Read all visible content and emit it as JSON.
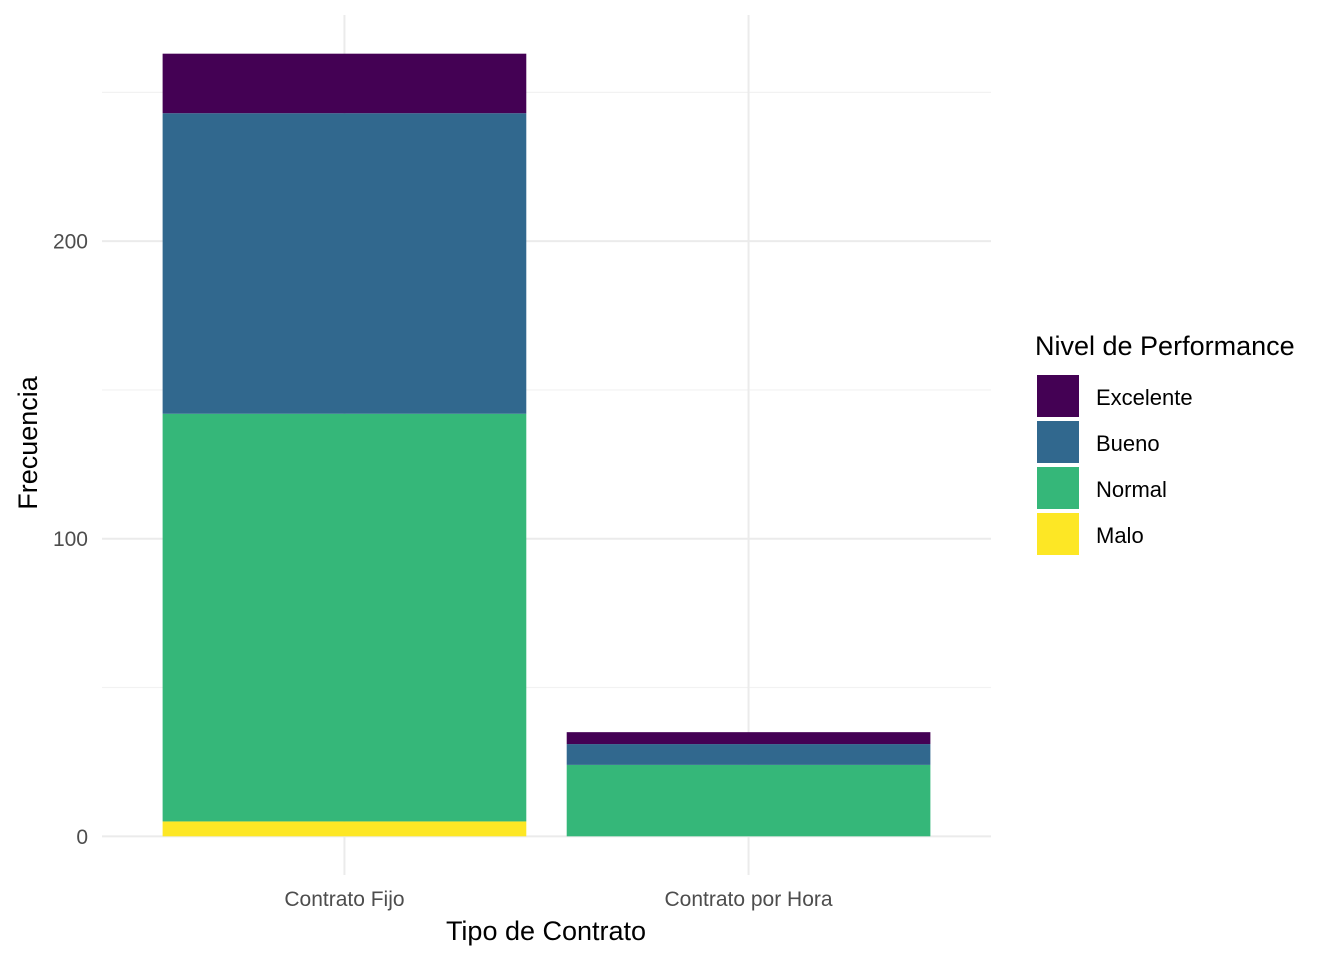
{
  "chart_data": {
    "type": "bar",
    "stacked": true,
    "xlabel": "Tipo de Contrato",
    "ylabel": "Frecuencia",
    "categories": [
      "Contrato Fijo",
      "Contrato por Hora"
    ],
    "series": [
      {
        "name": "Excelente",
        "color": "#440154",
        "values": [
          20,
          4
        ]
      },
      {
        "name": "Bueno",
        "color": "#31688E",
        "values": [
          101,
          7
        ]
      },
      {
        "name": "Normal",
        "color": "#35B779",
        "values": [
          137,
          24
        ]
      },
      {
        "name": "Malo",
        "color": "#FDE725",
        "values": [
          5,
          0
        ]
      }
    ],
    "stack_order_bottom_to_top": [
      "Malo",
      "Normal",
      "Bueno",
      "Excelente"
    ],
    "ylim": [
      -13,
      276
    ],
    "yticks": [
      0,
      100,
      200
    ],
    "grid": true,
    "legend": {
      "title": "Nivel de Performance",
      "position": "right",
      "items": [
        "Excelente",
        "Bueno",
        "Normal",
        "Malo"
      ]
    }
  }
}
